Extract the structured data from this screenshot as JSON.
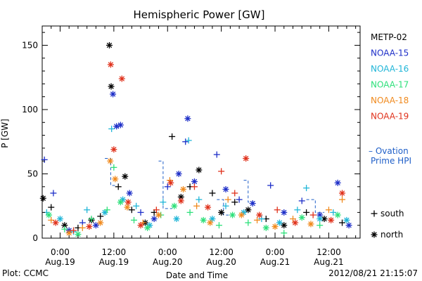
{
  "chart_data": {
    "type": "scatter",
    "title": "Hemispheric Power [GW]",
    "xlabel": "Date and Time",
    "ylabel": "P [GW]",
    "xlim": [
      -4,
      67
    ],
    "ylim": [
      0,
      165
    ],
    "y_ticks": [
      0,
      50,
      100,
      150
    ],
    "x_ticks": [
      {
        "hour": 0,
        "time": "0:00",
        "date": "Aug.19"
      },
      {
        "hour": 12,
        "time": "12:00",
        "date": "Aug.19"
      },
      {
        "hour": 24,
        "time": "0:00",
        "date": "Aug.20"
      },
      {
        "hour": 36,
        "time": "12:00",
        "date": "Aug.20"
      },
      {
        "hour": 48,
        "time": "0:00",
        "date": "Aug.21"
      },
      {
        "hour": 60,
        "time": "12:00",
        "date": "Aug.21"
      }
    ],
    "x_tick_unit": "hours",
    "grid": false,
    "legend_placement": "right",
    "marker_legend": [
      {
        "marker": "+",
        "label": "south"
      },
      {
        "marker": "*",
        "label": "north"
      }
    ],
    "ovation_series": {
      "name": "– Ovation Prime HPI",
      "color": "#1f5fc8",
      "segments": [
        [
          [
            10,
            62
          ],
          [
            11.3,
            62
          ],
          [
            11.3,
            41
          ],
          [
            12.5,
            41
          ]
        ],
        [
          [
            22,
            60
          ],
          [
            23,
            60
          ],
          [
            23,
            23
          ],
          [
            25,
            23
          ]
        ],
        [
          [
            35,
            30
          ],
          [
            36.5,
            30
          ],
          [
            36.5,
            18
          ],
          [
            38,
            18
          ]
        ],
        [
          [
            41,
            45
          ],
          [
            42,
            45
          ],
          [
            42,
            28
          ],
          [
            43.5,
            28
          ]
        ],
        [
          [
            55,
            30
          ],
          [
            57,
            30
          ],
          [
            57,
            20
          ],
          [
            59,
            20
          ]
        ]
      ]
    },
    "series": [
      {
        "name": "METP-02",
        "color": "#000000",
        "points": [
          {
            "x": -3.8,
            "y": 31,
            "m": "*"
          },
          {
            "x": -2,
            "y": 24,
            "m": "+"
          },
          {
            "x": 1,
            "y": 10,
            "m": "*"
          },
          {
            "x": 4,
            "y": 8,
            "m": "+"
          },
          {
            "x": 7,
            "y": 14,
            "m": "*"
          },
          {
            "x": 9,
            "y": 17,
            "m": "+"
          },
          {
            "x": 11,
            "y": 150,
            "m": "*"
          },
          {
            "x": 11.4,
            "y": 118,
            "m": "*"
          },
          {
            "x": 13,
            "y": 40,
            "m": "+"
          },
          {
            "x": 14.5,
            "y": 48,
            "m": "*"
          },
          {
            "x": 16,
            "y": 22,
            "m": "+"
          },
          {
            "x": 19,
            "y": 12,
            "m": "*"
          },
          {
            "x": 21,
            "y": 20,
            "m": "+"
          },
          {
            "x": 25,
            "y": 79,
            "m": "+"
          },
          {
            "x": 27,
            "y": 32,
            "m": "*"
          },
          {
            "x": 29,
            "y": 40,
            "m": "+"
          },
          {
            "x": 31,
            "y": 53,
            "m": "*"
          },
          {
            "x": 34,
            "y": 35,
            "m": "+"
          },
          {
            "x": 36,
            "y": 20,
            "m": "*"
          },
          {
            "x": 39,
            "y": 28,
            "m": "+"
          },
          {
            "x": 42,
            "y": 22,
            "m": "*"
          },
          {
            "x": 46,
            "y": 15,
            "m": "+"
          },
          {
            "x": 50,
            "y": 10,
            "m": "*"
          },
          {
            "x": 55,
            "y": 20,
            "m": "+"
          },
          {
            "x": 59,
            "y": 15,
            "m": "*"
          },
          {
            "x": 63,
            "y": 12,
            "m": "+"
          }
        ]
      },
      {
        "name": "NOAA-15",
        "color": "#1e2fc8",
        "points": [
          {
            "x": -3.5,
            "y": 61,
            "m": "+"
          },
          {
            "x": -1.5,
            "y": 35,
            "m": "+"
          },
          {
            "x": 2,
            "y": 6,
            "m": "*"
          },
          {
            "x": 5,
            "y": 12,
            "m": "+"
          },
          {
            "x": 8,
            "y": 10,
            "m": "*"
          },
          {
            "x": 11.8,
            "y": 112,
            "m": "*"
          },
          {
            "x": 12.6,
            "y": 87,
            "m": "*"
          },
          {
            "x": 13.5,
            "y": 88,
            "m": "*"
          },
          {
            "x": 15.5,
            "y": 35,
            "m": "*"
          },
          {
            "x": 18,
            "y": 20,
            "m": "+"
          },
          {
            "x": 21,
            "y": 15,
            "m": "*"
          },
          {
            "x": 24,
            "y": 40,
            "m": "+"
          },
          {
            "x": 26.5,
            "y": 50,
            "m": "*"
          },
          {
            "x": 28,
            "y": 75,
            "m": "+"
          },
          {
            "x": 28.5,
            "y": 93,
            "m": "*"
          },
          {
            "x": 30,
            "y": 44,
            "m": "*"
          },
          {
            "x": 35,
            "y": 65,
            "m": "+"
          },
          {
            "x": 37,
            "y": 38,
            "m": "*"
          },
          {
            "x": 40,
            "y": 30,
            "m": "+"
          },
          {
            "x": 43,
            "y": 27,
            "m": "*"
          },
          {
            "x": 47,
            "y": 41,
            "m": "+"
          },
          {
            "x": 50,
            "y": 20,
            "m": "*"
          },
          {
            "x": 54,
            "y": 29,
            "m": "+"
          },
          {
            "x": 58,
            "y": 18,
            "m": "*"
          },
          {
            "x": 62,
            "y": 43,
            "m": "*"
          },
          {
            "x": 64.5,
            "y": 10,
            "m": "*"
          }
        ]
      },
      {
        "name": "NOAA-16",
        "color": "#21b6d8",
        "points": [
          {
            "x": -3,
            "y": 20,
            "m": "+"
          },
          {
            "x": 0,
            "y": 15,
            "m": "*"
          },
          {
            "x": 3,
            "y": 5,
            "m": "+"
          },
          {
            "x": 6,
            "y": 22,
            "m": "+"
          },
          {
            "x": 10,
            "y": 20,
            "m": "*"
          },
          {
            "x": 11.5,
            "y": 85,
            "m": "+"
          },
          {
            "x": 14,
            "y": 30,
            "m": "*"
          },
          {
            "x": 17,
            "y": 25,
            "m": "+"
          },
          {
            "x": 20,
            "y": 10,
            "m": "*"
          },
          {
            "x": 23,
            "y": 28,
            "m": "+"
          },
          {
            "x": 26,
            "y": 15,
            "m": "*"
          },
          {
            "x": 28.7,
            "y": 76,
            "m": "+"
          },
          {
            "x": 31,
            "y": 30,
            "m": "+"
          },
          {
            "x": 34,
            "y": 15,
            "m": "*"
          },
          {
            "x": 37,
            "y": 25,
            "m": "+"
          },
          {
            "x": 41,
            "y": 20,
            "m": "*"
          },
          {
            "x": 45,
            "y": 15,
            "m": "+"
          },
          {
            "x": 49,
            "y": 12,
            "m": "*"
          },
          {
            "x": 53,
            "y": 22,
            "m": "+"
          },
          {
            "x": 55,
            "y": 39,
            "m": "+"
          },
          {
            "x": 58,
            "y": 15,
            "m": "*"
          },
          {
            "x": 61,
            "y": 20,
            "m": "+"
          },
          {
            "x": 64,
            "y": 14,
            "m": "*"
          }
        ]
      },
      {
        "name": "NOAA-17",
        "color": "#2de07a",
        "points": [
          {
            "x": -2.5,
            "y": 18,
            "m": "*"
          },
          {
            "x": 1,
            "y": 7,
            "m": "+"
          },
          {
            "x": 4,
            "y": 3,
            "m": "*"
          },
          {
            "x": 7,
            "y": 15,
            "m": "+"
          },
          {
            "x": 10.5,
            "y": 22,
            "m": "+"
          },
          {
            "x": 12,
            "y": 55,
            "m": "+"
          },
          {
            "x": 13.5,
            "y": 28,
            "m": "*"
          },
          {
            "x": 16.5,
            "y": 14,
            "m": "+"
          },
          {
            "x": 19.5,
            "y": 8,
            "m": "*"
          },
          {
            "x": 22.5,
            "y": 18,
            "m": "+"
          },
          {
            "x": 25.5,
            "y": 25,
            "m": "*"
          },
          {
            "x": 29,
            "y": 20,
            "m": "+"
          },
          {
            "x": 32,
            "y": 14,
            "m": "*"
          },
          {
            "x": 35.5,
            "y": 10,
            "m": "+"
          },
          {
            "x": 38.5,
            "y": 18,
            "m": "*"
          },
          {
            "x": 42,
            "y": 12,
            "m": "+"
          },
          {
            "x": 46,
            "y": 8,
            "m": "*"
          },
          {
            "x": 50,
            "y": 4,
            "m": "+"
          },
          {
            "x": 54,
            "y": 16,
            "m": "*"
          },
          {
            "x": 58,
            "y": 10,
            "m": "+"
          },
          {
            "x": 62,
            "y": 18,
            "m": "*"
          }
        ]
      },
      {
        "name": "NOAA-18",
        "color": "#f08a1e",
        "points": [
          {
            "x": -2,
            "y": 14,
            "m": "+"
          },
          {
            "x": 2,
            "y": 4,
            "m": "*"
          },
          {
            "x": 5,
            "y": 8,
            "m": "+"
          },
          {
            "x": 9,
            "y": 12,
            "m": "*"
          },
          {
            "x": 11.2,
            "y": 60,
            "m": "*"
          },
          {
            "x": 12.3,
            "y": 46,
            "m": "*"
          },
          {
            "x": 15,
            "y": 24,
            "m": "*"
          },
          {
            "x": 18.5,
            "y": 12,
            "m": "+"
          },
          {
            "x": 22,
            "y": 18,
            "m": "*"
          },
          {
            "x": 24.5,
            "y": 45,
            "m": "+"
          },
          {
            "x": 27.5,
            "y": 38,
            "m": "*"
          },
          {
            "x": 30.5,
            "y": 25,
            "m": "+"
          },
          {
            "x": 33.5,
            "y": 12,
            "m": "*"
          },
          {
            "x": 37.5,
            "y": 30,
            "m": "+"
          },
          {
            "x": 40.5,
            "y": 18,
            "m": "*"
          },
          {
            "x": 44,
            "y": 14,
            "m": "+"
          },
          {
            "x": 48,
            "y": 9,
            "m": "*"
          },
          {
            "x": 52,
            "y": 15,
            "m": "+"
          },
          {
            "x": 56,
            "y": 11,
            "m": "*"
          },
          {
            "x": 60,
            "y": 22,
            "m": "+"
          },
          {
            "x": 63,
            "y": 30,
            "m": "+"
          }
        ]
      },
      {
        "name": "NOAA-19",
        "color": "#e0321c",
        "points": [
          {
            "x": -1,
            "y": 12,
            "m": "*"
          },
          {
            "x": 3,
            "y": 6,
            "m": "+"
          },
          {
            "x": 6.5,
            "y": 9,
            "m": "*"
          },
          {
            "x": 11.3,
            "y": 135,
            "m": "*"
          },
          {
            "x": 12,
            "y": 69,
            "m": "*"
          },
          {
            "x": 13.8,
            "y": 124,
            "m": "*"
          },
          {
            "x": 15.2,
            "y": 28,
            "m": "*"
          },
          {
            "x": 18,
            "y": 10,
            "m": "*"
          },
          {
            "x": 21.5,
            "y": 22,
            "m": "+"
          },
          {
            "x": 24.7,
            "y": 43,
            "m": "*"
          },
          {
            "x": 27,
            "y": 29,
            "m": "*"
          },
          {
            "x": 30,
            "y": 40,
            "m": "+"
          },
          {
            "x": 33,
            "y": 24,
            "m": "*"
          },
          {
            "x": 36,
            "y": 52,
            "m": "+"
          },
          {
            "x": 39,
            "y": 35,
            "m": "+"
          },
          {
            "x": 41.5,
            "y": 62,
            "m": "*"
          },
          {
            "x": 44.5,
            "y": 18,
            "m": "*"
          },
          {
            "x": 48.5,
            "y": 22,
            "m": "+"
          },
          {
            "x": 52.5,
            "y": 12,
            "m": "*"
          },
          {
            "x": 56.5,
            "y": 18,
            "m": "+"
          },
          {
            "x": 60.5,
            "y": 14,
            "m": "*"
          },
          {
            "x": 63,
            "y": 35,
            "m": "*"
          }
        ]
      }
    ]
  },
  "footer": {
    "plot_label": "Plot: CCMC",
    "timestamp": "2012/08/21 21:15:07"
  }
}
